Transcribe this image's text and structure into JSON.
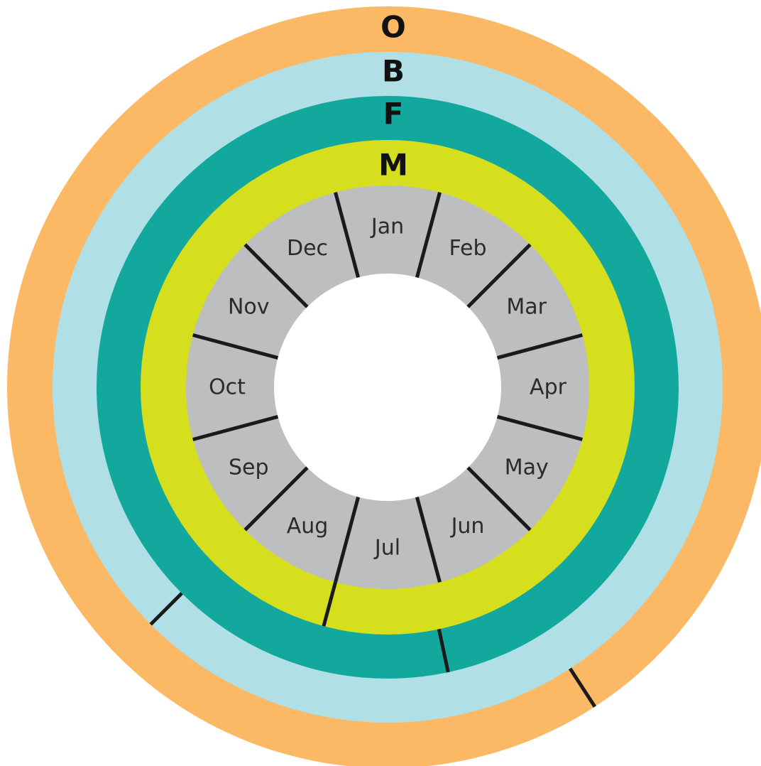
{
  "rings": [
    {
      "label": "O",
      "color": "#FBB966",
      "divider_month": 4.9
    },
    {
      "label": "B",
      "color": "#B0DFE5",
      "divider_month": 7.5
    },
    {
      "label": "F",
      "color": "#12A89E",
      "divider_month": 5.6
    },
    {
      "label": "M",
      "color": "#D5DF1E",
      "divider_month": 6.5
    }
  ],
  "months": [
    "Jan",
    "Feb",
    "Mar",
    "Apr",
    "May",
    "Jun",
    "Jul",
    "Aug",
    "Sep",
    "Oct",
    "Nov",
    "Dec"
  ],
  "month_ring_color": "#BCBEC0",
  "divider_color": "#1a1a1a",
  "center_color": "#ffffff"
}
